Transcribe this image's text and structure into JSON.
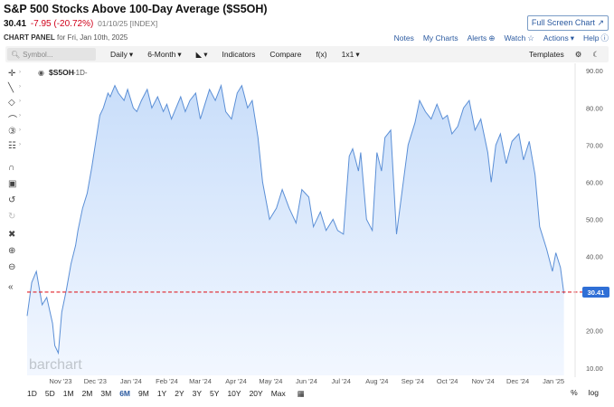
{
  "header": {
    "title": "S&P 500 Stocks Above 100-Day Average ($S5OH)",
    "last": "30.41",
    "change": "-7.95 (-20.72%)",
    "meta": "01/10/25 [INDEX]",
    "full_screen_label": "Full Screen Chart"
  },
  "panel": {
    "label_bold": "CHART PANEL",
    "label_rest": " for Fri, Jan 10th, 2025",
    "links": {
      "notes": "Notes",
      "my_charts": "My Charts",
      "alerts": "Alerts",
      "watch": "Watch",
      "actions": "Actions",
      "help": "Help"
    }
  },
  "toolbar": {
    "symbol_placeholder": "Symbol...",
    "interval": "Daily",
    "period": "6-Month",
    "indicators": "Indicators",
    "compare": "Compare",
    "fx": "f(x)",
    "layout": "1x1",
    "templates": "Templates"
  },
  "bottom": {
    "periods": [
      "1D",
      "5D",
      "1M",
      "2M",
      "3M",
      "6M",
      "9M",
      "1Y",
      "2Y",
      "3Y",
      "5Y",
      "10Y",
      "20Y",
      "Max"
    ],
    "active": "6M",
    "percent": "%",
    "log": "log"
  },
  "legend": {
    "symbol": "$S5OH",
    "interval": "1D"
  },
  "watermark": "barchart",
  "colors": {
    "line": "#5b8fd6",
    "fill_top": "#c9defa",
    "fill_bottom": "#f2f7ff",
    "ref_line": "#e0242b",
    "price_tag": "#2f6fd6",
    "accent": "#2b5aa0"
  },
  "icons": [
    "search-icon",
    "chart-type-icon",
    "gear-icon",
    "moon-icon",
    "eye-icon",
    "calendar-icon",
    "watch-star-icon"
  ],
  "chart_data": {
    "type": "area",
    "title": "",
    "xlabel": "",
    "ylabel": "",
    "ylim": [
      8,
      92
    ],
    "y_ticks": [
      10,
      20,
      30,
      40,
      50,
      60,
      70,
      80,
      90
    ],
    "y_tick_labels": [
      "10.00",
      "20.00",
      "30.00",
      "40.00",
      "50.00",
      "60.00",
      "70.00",
      "80.00",
      "90.00"
    ],
    "x_ticks": [
      {
        "date": "2023-11-01",
        "label": "Nov '23"
      },
      {
        "date": "2023-12-01",
        "label": "Dec '23"
      },
      {
        "date": "2024-01-01",
        "label": "Jan '24"
      },
      {
        "date": "2024-02-01",
        "label": "Feb '24"
      },
      {
        "date": "2024-03-01",
        "label": "Mar '24"
      },
      {
        "date": "2024-04-01",
        "label": "Apr '24"
      },
      {
        "date": "2024-05-01",
        "label": "May '24"
      },
      {
        "date": "2024-06-01",
        "label": "Jun '24"
      },
      {
        "date": "2024-07-01",
        "label": "Jul '24"
      },
      {
        "date": "2024-08-01",
        "label": "Aug '24"
      },
      {
        "date": "2024-09-01",
        "label": "Sep '24"
      },
      {
        "date": "2024-10-01",
        "label": "Oct '24"
      },
      {
        "date": "2024-11-01",
        "label": "Nov '24"
      },
      {
        "date": "2024-12-01",
        "label": "Dec '24"
      },
      {
        "date": "2025-01-01",
        "label": "Jan '25"
      }
    ],
    "x_range": [
      "2023-10-03",
      "2025-01-15"
    ],
    "last_value": 30.41,
    "last_value_label": "30.41",
    "series": [
      {
        "x": [
          "2023-10-03",
          "2023-10-07",
          "2023-10-11",
          "2023-10-16",
          "2023-10-20",
          "2023-10-25",
          "2023-10-27",
          "2023-10-30",
          "2023-11-02",
          "2023-11-06",
          "2023-11-10",
          "2023-11-14",
          "2023-11-16",
          "2023-11-20",
          "2023-11-24",
          "2023-11-28",
          "2023-12-01",
          "2023-12-05",
          "2023-12-08",
          "2023-12-12",
          "2023-12-14",
          "2023-12-18",
          "2023-12-21",
          "2023-12-26",
          "2023-12-29",
          "2024-01-03",
          "2024-01-06",
          "2024-01-10",
          "2024-01-15",
          "2024-01-19",
          "2024-01-24",
          "2024-01-29",
          "2024-02-01",
          "2024-02-05",
          "2024-02-09",
          "2024-02-13",
          "2024-02-17",
          "2024-02-21",
          "2024-02-26",
          "2024-03-01",
          "2024-03-05",
          "2024-03-09",
          "2024-03-14",
          "2024-03-19",
          "2024-03-23",
          "2024-03-28",
          "2024-04-02",
          "2024-04-06",
          "2024-04-11",
          "2024-04-15",
          "2024-04-20",
          "2024-04-24",
          "2024-04-30",
          "2024-05-06",
          "2024-05-11",
          "2024-05-17",
          "2024-05-23",
          "2024-05-28",
          "2024-06-03",
          "2024-06-07",
          "2024-06-13",
          "2024-06-18",
          "2024-06-24",
          "2024-06-28",
          "2024-07-03",
          "2024-07-08",
          "2024-07-11",
          "2024-07-16",
          "2024-07-18",
          "2024-07-23",
          "2024-07-28",
          "2024-08-01",
          "2024-08-05",
          "2024-08-08",
          "2024-08-13",
          "2024-08-18",
          "2024-08-23",
          "2024-08-28",
          "2024-09-03",
          "2024-09-07",
          "2024-09-12",
          "2024-09-17",
          "2024-09-22",
          "2024-09-27",
          "2024-10-01",
          "2024-10-05",
          "2024-10-10",
          "2024-10-15",
          "2024-10-20",
          "2024-10-25",
          "2024-10-30",
          "2024-11-05",
          "2024-11-08",
          "2024-11-12",
          "2024-11-16",
          "2024-11-21",
          "2024-11-26",
          "2024-12-02",
          "2024-12-06",
          "2024-12-11",
          "2024-12-16",
          "2024-12-20",
          "2024-12-26",
          "2024-12-31",
          "2025-01-03",
          "2025-01-07",
          "2025-01-10"
        ],
        "y": [
          24,
          33,
          36,
          27,
          29,
          22,
          16,
          14,
          25,
          31,
          38,
          43,
          47,
          53,
          57,
          64,
          70,
          78,
          80,
          84,
          83,
          86,
          84,
          82,
          85,
          80,
          79,
          82,
          85,
          80,
          83,
          79,
          81,
          77,
          80,
          83,
          79,
          82,
          84,
          77,
          81,
          85,
          82,
          86,
          79,
          77,
          84,
          86,
          80,
          82,
          72,
          60,
          50,
          53,
          58,
          53,
          49,
          58,
          56,
          48,
          52,
          47,
          50,
          47,
          46,
          67,
          69,
          63,
          68,
          50,
          47,
          68,
          63,
          72,
          74,
          46,
          58,
          70,
          76,
          82,
          79,
          77,
          81,
          77,
          78,
          73,
          75,
          80,
          82,
          74,
          77,
          68,
          60,
          70,
          73,
          65,
          71,
          73,
          66,
          71,
          62,
          48,
          42,
          36,
          41,
          37,
          30
        ]
      }
    ]
  }
}
